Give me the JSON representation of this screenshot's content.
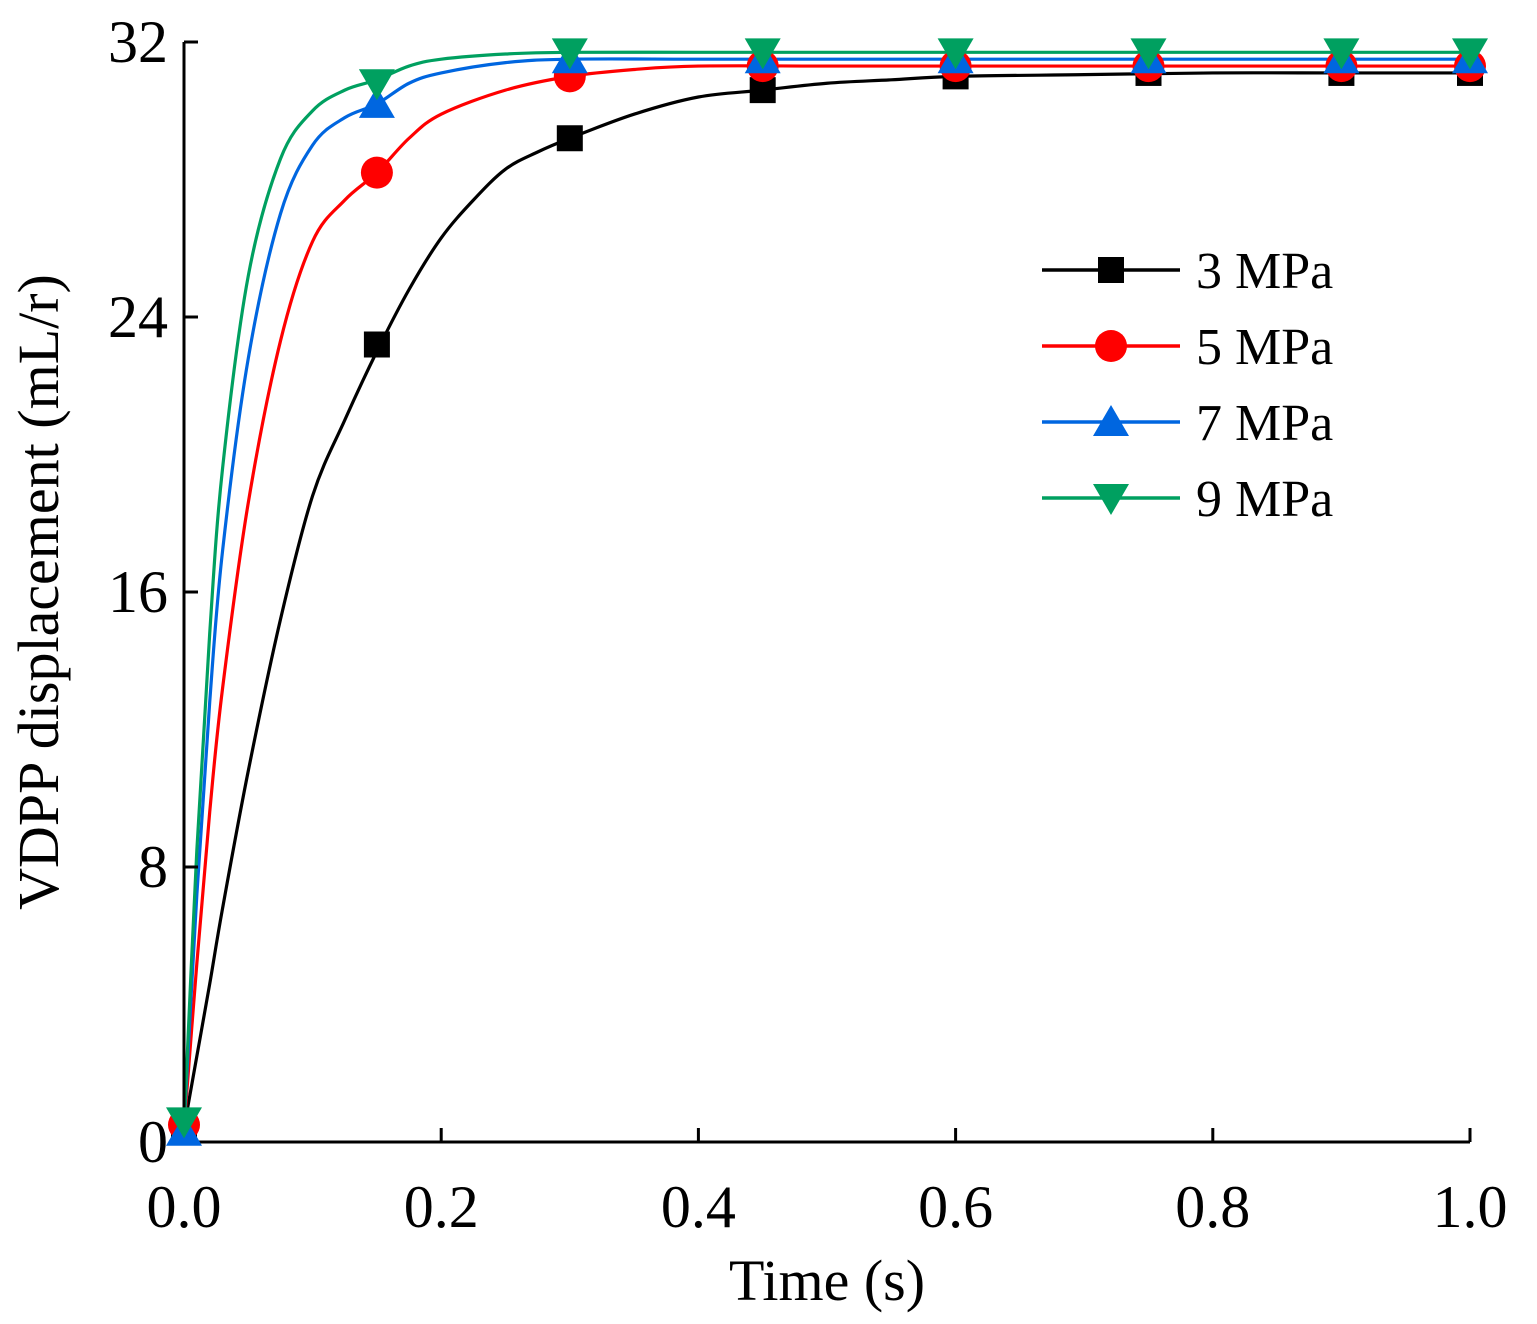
{
  "chart_data": {
    "type": "line",
    "title": "",
    "xlabel": "Time (s)",
    "ylabel": "VDPP displacement (mL/r)",
    "xlim": [
      0,
      1.0
    ],
    "ylim": [
      0,
      32
    ],
    "xticks": [
      0.0,
      0.2,
      0.4,
      0.6,
      0.8,
      1.0
    ],
    "xtick_labels": [
      "0.0",
      "0.2",
      "0.4",
      "0.6",
      "0.8",
      "1.0"
    ],
    "yticks": [
      0,
      8,
      16,
      24,
      32
    ],
    "ytick_labels": [
      "0",
      "8",
      "16",
      "24",
      "32"
    ],
    "grid": false,
    "legend_position": "right-upper",
    "marker_x": [
      0,
      0.15,
      0.3,
      0.45,
      0.6,
      0.75,
      0.9,
      1.0
    ],
    "series": [
      {
        "name": "3 MPa",
        "color": "#000000",
        "marker": "square",
        "values": [
          0.5,
          23.2,
          29.2,
          30.6,
          31.0,
          31.1,
          31.1,
          31.1
        ],
        "curve_x": [
          0,
          0.01,
          0.02,
          0.03,
          0.05,
          0.075,
          0.1,
          0.125,
          0.15,
          0.175,
          0.2,
          0.225,
          0.25,
          0.275,
          0.3,
          0.35,
          0.4,
          0.45,
          0.5,
          0.55,
          0.6,
          0.7,
          0.8,
          0.9,
          1.0
        ],
        "curve_y": [
          0.4,
          2.5,
          4.6,
          6.8,
          10.8,
          15.2,
          18.8,
          21.0,
          23.0,
          24.8,
          26.3,
          27.4,
          28.3,
          28.8,
          29.2,
          29.9,
          30.4,
          30.6,
          30.8,
          30.9,
          31.0,
          31.05,
          31.1,
          31.1,
          31.1
        ]
      },
      {
        "name": "5 MPa",
        "color": "#ff0000",
        "marker": "circle",
        "values": [
          0.5,
          28.2,
          31.0,
          31.3,
          31.3,
          31.3,
          31.3,
          31.3
        ],
        "curve_x": [
          0,
          0.01,
          0.02,
          0.03,
          0.05,
          0.075,
          0.1,
          0.125,
          0.15,
          0.175,
          0.2,
          0.25,
          0.3,
          0.35,
          0.4,
          0.5,
          0.6,
          0.8,
          1.0
        ],
        "curve_y": [
          0.4,
          5.2,
          9.6,
          13.2,
          18.6,
          23.3,
          26.2,
          27.4,
          28.2,
          29.2,
          29.9,
          30.6,
          31.0,
          31.2,
          31.3,
          31.3,
          31.3,
          31.3,
          31.3
        ]
      },
      {
        "name": "7 MPa",
        "color": "#0066e0",
        "marker": "triangle-up",
        "values": [
          0.3,
          30.2,
          31.5,
          31.5,
          31.5,
          31.5,
          31.5,
          31.5
        ],
        "curve_x": [
          0,
          0.01,
          0.02,
          0.03,
          0.05,
          0.075,
          0.1,
          0.125,
          0.15,
          0.175,
          0.2,
          0.25,
          0.3,
          0.4,
          0.5,
          0.6,
          0.8,
          1.0
        ],
        "curve_y": [
          0.4,
          7.2,
          12.8,
          17.2,
          22.8,
          27.0,
          29.0,
          29.8,
          30.2,
          30.8,
          31.1,
          31.4,
          31.5,
          31.5,
          31.5,
          31.5,
          31.5,
          31.5
        ]
      },
      {
        "name": "9 MPa",
        "color": "#00a060",
        "marker": "triangle-down",
        "values": [
          0.6,
          30.8,
          31.7,
          31.7,
          31.7,
          31.7,
          31.7,
          31.7
        ],
        "curve_x": [
          0,
          0.01,
          0.02,
          0.03,
          0.05,
          0.075,
          0.1,
          0.125,
          0.15,
          0.175,
          0.2,
          0.25,
          0.3,
          0.4,
          0.5,
          0.6,
          0.8,
          1.0
        ],
        "curve_y": [
          0.4,
          8.5,
          14.8,
          19.6,
          25.2,
          28.6,
          30.0,
          30.6,
          30.9,
          31.3,
          31.5,
          31.65,
          31.7,
          31.7,
          31.7,
          31.7,
          31.7,
          31.7
        ]
      }
    ]
  }
}
